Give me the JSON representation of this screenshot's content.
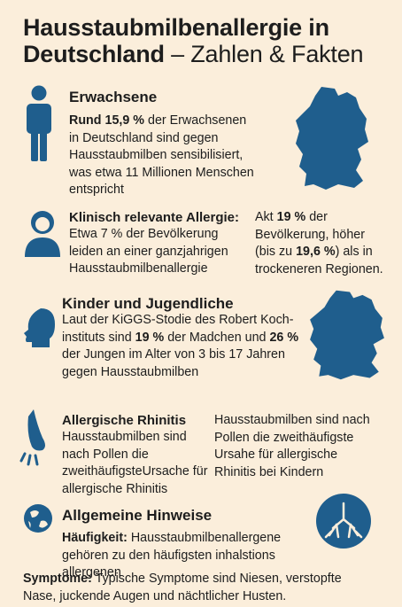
{
  "title": {
    "main": "Hausstaubmilbenallergie in Deutschland",
    "subtitle": "– Zahlen & Fakten"
  },
  "adults": {
    "heading": "Erwachsene",
    "text_bold": "Rund 15,9 %",
    "text_rest": " der Erwachsenen in Deutschland sind gegen Hausstaubmilben sensibilisiert, was etwa 11 Millionen Menschen entspricht",
    "icon": "person-icon"
  },
  "clinical": {
    "heading": "Klinisch relevante Allergie:",
    "text": "Etwa 7 % der Bevölkerung leiden an einer ganzjahrigen Hausstaubmilbenallergie",
    "side_pre": "Akt ",
    "side_bold1": "19 %",
    "side_mid": " der Bevölkerung, höher (bis zu ",
    "side_bold2": "19,6 %",
    "side_post": ") als in trockeneren Regionen.",
    "icon": "user-avatar-icon"
  },
  "children": {
    "heading": "Kinder und Jugendliche",
    "pre": "Laut der KiGGS-Stodie des Robert Koch-instituts sind ",
    "bold1": "19 %",
    "mid": " der Madchen und ",
    "bold2": "26 %",
    "post": " der Jungen im Alter von 3 bis 17 Jahren gegen Hausstaubmilben",
    "icon": "head-profile-icon"
  },
  "rhinitis": {
    "heading": "Allergische Rhinitis",
    "text": "Hausstaubmilben sind nach Pollen die zweithäufigsteUrsache für allergische Rhinitis",
    "side": "Hausstaubmilben sind nach Pollen die zweithäufigste Ursahe für allergische Rhinitis bei Kindern",
    "icon": "nose-sneeze-icon"
  },
  "general": {
    "heading": "Allgemeine Hinweise",
    "freq_label": "Häufigkeit:",
    "freq_text": " Hausstaubmilbenallergene gehören zu den häufigsten inhalstions allergenen",
    "icons": [
      "globe-icon",
      "lungs-icon"
    ]
  },
  "symptoms": {
    "label": "Symptome:",
    "text": " Typische Symptome sind Niesen, verstopfte Nase, juckende Augen und nächtlicher Husten."
  },
  "map_icon": "germany-map-icon",
  "colors": {
    "accent": "#1f5e8d",
    "background": "#fbeedb",
    "text": "#1d1d1d"
  }
}
